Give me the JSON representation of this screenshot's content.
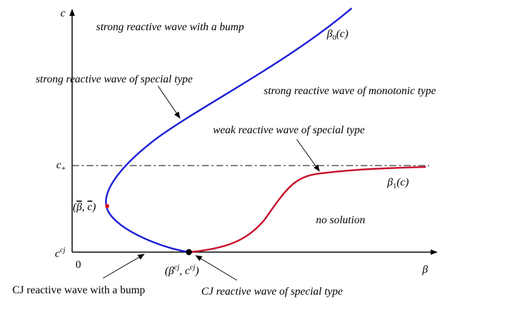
{
  "axes": {
    "y": "c",
    "x": "β",
    "origin": "0",
    "c_star": {
      "base": "c",
      "sub": "*"
    },
    "c_cj": {
      "base": "c",
      "sup": "cj"
    }
  },
  "curves": {
    "beta0": {
      "base": "β",
      "sub": "0",
      "arg": "(c)"
    },
    "beta1": {
      "base": "β",
      "sub": "1",
      "arg": "(c)"
    }
  },
  "points": {
    "bar": {
      "open": "(",
      "b": "β",
      "sep": ", ",
      "c": "c",
      "close": ")"
    },
    "cj": {
      "open": "(",
      "b": "β",
      "bsup": "cj",
      "sep": ", ",
      "c": "c",
      "csup": "cj",
      "close": ")"
    }
  },
  "regions": [
    "strong reactive wave with a bump",
    "strong reactive wave of special type",
    "strong reactive wave of monotonic type",
    "weak reactive wave of special type",
    "no solution",
    "CJ reactive wave with a bump",
    "CJ reactive wave of special type"
  ]
}
